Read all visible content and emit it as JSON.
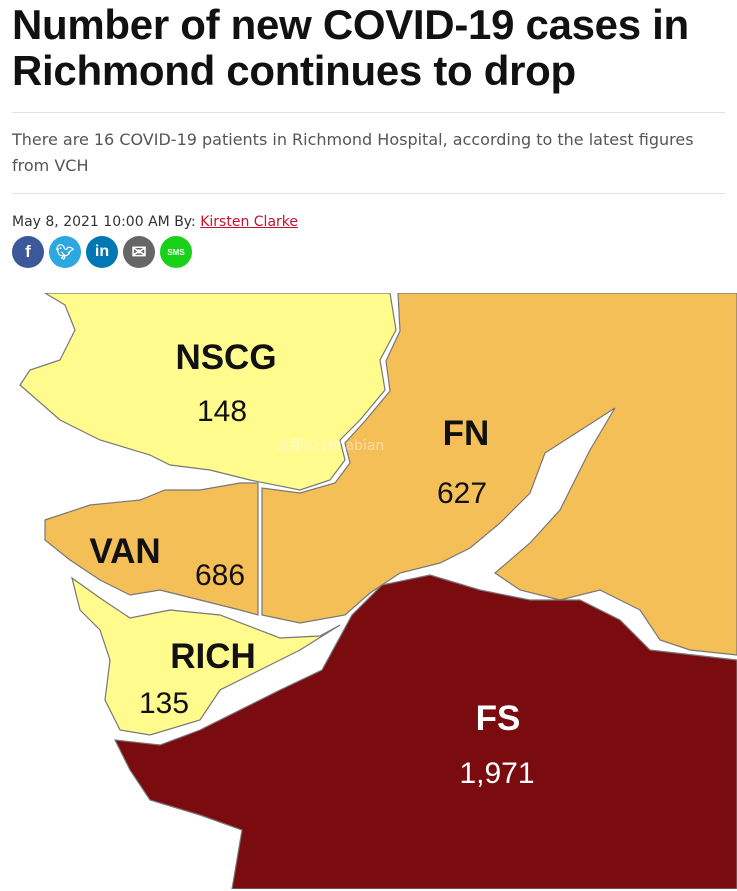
{
  "article": {
    "title": "Number of new COVID-19 cases in Richmond continues to drop",
    "subtitle": "There are 16 COVID-19 patients in Richmond Hospital, according to the latest figures from VCH",
    "date": "May 8, 2021 10:00 AM",
    "by_label": "By:",
    "author": "Kirsten Clarke"
  },
  "share": [
    {
      "icon": "facebook-icon",
      "glyph": "f",
      "color": "#3b5998"
    },
    {
      "icon": "twitter-icon",
      "glyph": "t",
      "color": "#2ca7e0"
    },
    {
      "icon": "linkedin-icon",
      "glyph": "in",
      "color": "#0077b5"
    },
    {
      "icon": "email-icon",
      "glyph": "✉",
      "color": "#666666"
    },
    {
      "icon": "sms-icon",
      "glyph": "SMS",
      "color": "#1ad11a"
    }
  ],
  "map": {
    "regions": [
      {
        "code": "NSCG",
        "value": "148",
        "color": "#fffb8c"
      },
      {
        "code": "FN",
        "value": "627",
        "color": "#f5bf57"
      },
      {
        "code": "VAN",
        "value": "686",
        "color": "#f5bf57"
      },
      {
        "code": "RICH",
        "value": "135",
        "color": "#fffb8c"
      },
      {
        "code": "FS",
        "value": "1,971",
        "color": "#7a0c10"
      }
    ],
    "watermark": "海那边 Hinabian"
  }
}
